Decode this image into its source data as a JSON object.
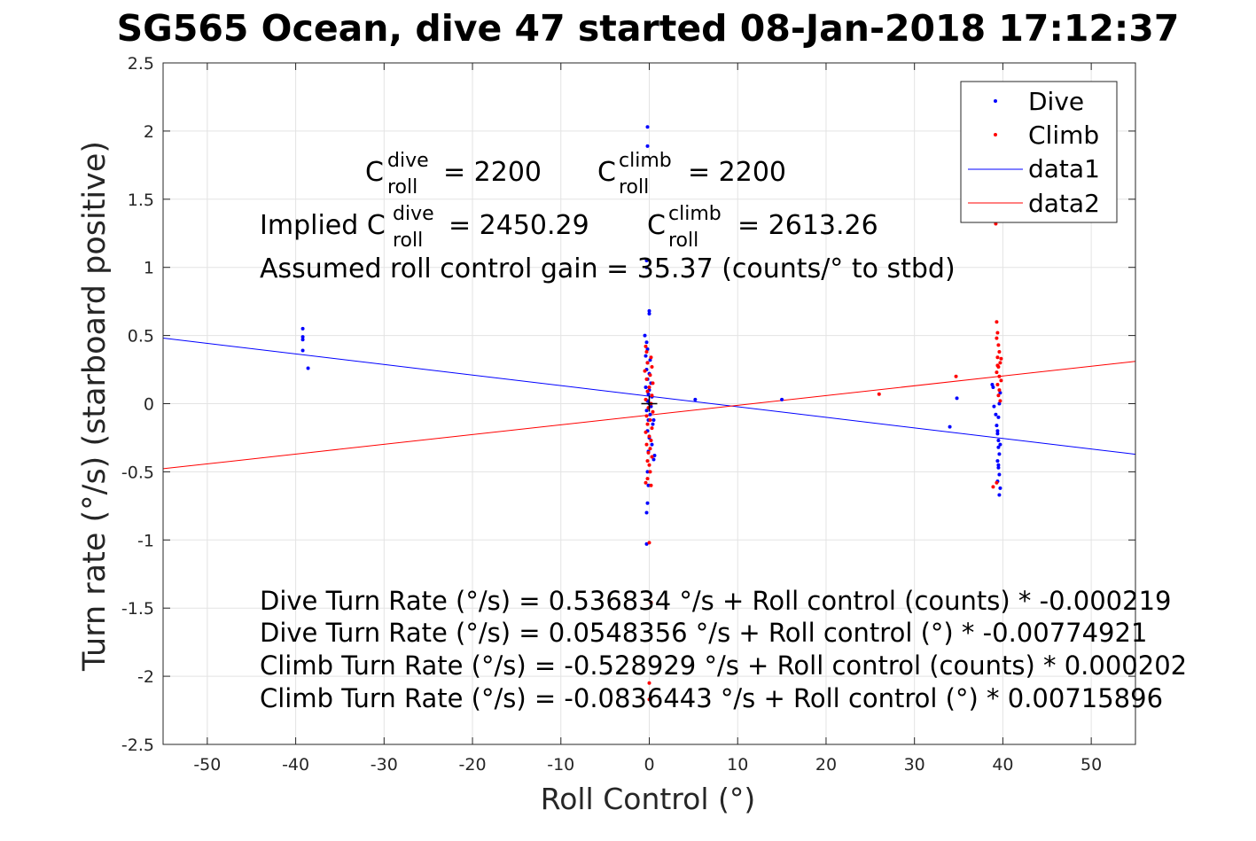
{
  "chart_data": {
    "type": "scatter",
    "title": "SG565 Ocean, dive 47 started 08-Jan-2018 17:12:37",
    "xlabel": "Roll Control (°)",
    "ylabel": "Turn rate (°/s) (starboard positive)",
    "xlim": [
      -55,
      55
    ],
    "ylim": [
      -2.5,
      2.5
    ],
    "xticks": [
      -50,
      -40,
      -30,
      -20,
      -10,
      0,
      10,
      20,
      30,
      40,
      50
    ],
    "yticks": [
      -2.5,
      -2,
      -1.5,
      -1,
      -0.5,
      0,
      0.5,
      1,
      1.5,
      2,
      2.5
    ],
    "xtick_labels": [
      "-50",
      "-40",
      "-30",
      "-20",
      "-10",
      "0",
      "10",
      "20",
      "30",
      "40",
      "50"
    ],
    "ytick_labels": [
      "-2.5",
      "-2",
      "-1.5",
      "-1",
      "-0.5",
      "0",
      "0.5",
      "1",
      "1.5",
      "2",
      "2.5"
    ],
    "grid": true,
    "legend_position": "top-right",
    "legend": [
      "Dive",
      "Climb",
      "data1",
      "data2"
    ],
    "series": [
      {
        "name": "Dive",
        "kind": "points",
        "color": "#0000ff",
        "points": [
          [
            -39.2,
            0.55
          ],
          [
            -39.2,
            0.49
          ],
          [
            -39.2,
            0.47
          ],
          [
            -39.2,
            0.39
          ],
          [
            -38.6,
            0.26
          ],
          [
            -0.5,
            0.5
          ],
          [
            -0.3,
            0.45
          ],
          [
            -0.2,
            0.4
          ],
          [
            -0.4,
            0.35
          ],
          [
            -0.2,
            0.3
          ],
          [
            0.1,
            0.32
          ],
          [
            -0.3,
            0.25
          ],
          [
            0.0,
            0.22
          ],
          [
            -0.2,
            0.18
          ],
          [
            0.2,
            0.15
          ],
          [
            -0.4,
            0.12
          ],
          [
            0.0,
            0.1
          ],
          [
            -0.1,
            0.07
          ],
          [
            0.3,
            0.05
          ],
          [
            -0.2,
            0.02
          ],
          [
            0.0,
            0.0
          ],
          [
            0.2,
            -0.02
          ],
          [
            -0.3,
            -0.05
          ],
          [
            0.1,
            -0.08
          ],
          [
            -0.1,
            -0.12
          ],
          [
            0.4,
            -0.15
          ],
          [
            -0.2,
            -0.2
          ],
          [
            0.0,
            -0.25
          ],
          [
            0.3,
            -0.3
          ],
          [
            -0.1,
            -0.35
          ],
          [
            0.6,
            -0.38
          ],
          [
            0.5,
            -0.41
          ],
          [
            0.5,
            -0.12
          ],
          [
            -0.2,
            -0.5
          ],
          [
            -0.1,
            -0.6
          ],
          [
            -0.2,
            -0.73
          ],
          [
            -0.3,
            -0.8
          ],
          [
            -0.3,
            -1.03
          ],
          [
            -0.2,
            2.03
          ],
          [
            -0.2,
            1.89
          ],
          [
            -0.3,
            1.05
          ],
          [
            -0.3,
            1.0
          ],
          [
            0.0,
            0.68
          ],
          [
            0.0,
            0.66
          ],
          [
            5.2,
            0.03
          ],
          [
            15.0,
            0.03
          ],
          [
            34.0,
            -0.17
          ],
          [
            34.8,
            0.04
          ],
          [
            38.8,
            0.14
          ],
          [
            38.9,
            0.12
          ],
          [
            39.0,
            -0.02
          ],
          [
            39.2,
            -0.08
          ],
          [
            39.3,
            -0.16
          ],
          [
            39.4,
            -0.22
          ],
          [
            39.5,
            -0.27
          ],
          [
            39.5,
            -0.32
          ],
          [
            39.6,
            -0.37
          ],
          [
            39.4,
            -0.42
          ],
          [
            39.5,
            -0.47
          ],
          [
            39.6,
            -0.52
          ],
          [
            39.4,
            -0.57
          ],
          [
            39.7,
            -0.62
          ],
          [
            39.6,
            -0.67
          ],
          [
            39.7,
            0.08
          ],
          [
            39.6,
            0.0
          ],
          [
            39.5,
            -0.1
          ],
          [
            39.4,
            -0.2
          ],
          [
            39.7,
            -0.3
          ],
          [
            39.5,
            -0.45
          ]
        ]
      },
      {
        "name": "Climb",
        "kind": "points",
        "color": "#ff0000",
        "points": [
          [
            -0.4,
            0.42
          ],
          [
            -0.3,
            0.38
          ],
          [
            0.2,
            0.34
          ],
          [
            -0.2,
            0.3
          ],
          [
            0.3,
            0.27
          ],
          [
            -0.5,
            0.24
          ],
          [
            0.1,
            0.21
          ],
          [
            -0.3,
            0.18
          ],
          [
            0.4,
            0.15
          ],
          [
            0.0,
            0.12
          ],
          [
            -0.2,
            0.09
          ],
          [
            0.3,
            0.06
          ],
          [
            -0.4,
            0.03
          ],
          [
            0.2,
            0.0
          ],
          [
            -0.1,
            -0.03
          ],
          [
            0.4,
            -0.06
          ],
          [
            -0.3,
            -0.09
          ],
          [
            0.1,
            -0.12
          ],
          [
            -0.2,
            -0.15
          ],
          [
            0.3,
            -0.18
          ],
          [
            -0.4,
            -0.21
          ],
          [
            0.0,
            -0.24
          ],
          [
            0.2,
            -0.27
          ],
          [
            -0.3,
            -0.3
          ],
          [
            0.1,
            -0.33
          ],
          [
            -0.1,
            -0.36
          ],
          [
            0.3,
            -0.39
          ],
          [
            -0.2,
            -0.42
          ],
          [
            0.0,
            -0.45
          ],
          [
            0.1,
            -0.5
          ],
          [
            -0.2,
            -0.55
          ],
          [
            0.2,
            -0.6
          ],
          [
            -0.4,
            -0.58
          ],
          [
            0.0,
            -1.02
          ],
          [
            0.2,
            -1.46
          ],
          [
            0.0,
            -2.17
          ],
          [
            0.0,
            -2.05
          ],
          [
            26.0,
            0.07
          ],
          [
            34.7,
            0.2
          ],
          [
            38.9,
            -0.61
          ],
          [
            39.3,
            -0.58
          ],
          [
            39.3,
            0.6
          ],
          [
            39.4,
            0.52
          ],
          [
            39.3,
            0.48
          ],
          [
            39.5,
            0.43
          ],
          [
            39.6,
            0.38
          ],
          [
            39.4,
            0.34
          ],
          [
            39.7,
            0.3
          ],
          [
            39.5,
            0.27
          ],
          [
            39.3,
            0.23
          ],
          [
            39.6,
            0.2
          ],
          [
            39.8,
            0.17
          ],
          [
            39.4,
            0.14
          ],
          [
            39.6,
            0.1
          ],
          [
            39.5,
            0.06
          ],
          [
            39.7,
            0.02
          ],
          [
            39.4,
            0.28
          ],
          [
            39.8,
            0.33
          ],
          [
            39.2,
            1.32
          ]
        ]
      },
      {
        "name": "data1",
        "kind": "line",
        "color": "#0000ff",
        "x": [
          -55,
          55
        ],
        "y": [
          0.481091,
          -0.371412
        ]
      },
      {
        "name": "data2",
        "kind": "line",
        "color": "#ff0000",
        "x": [
          -55,
          55
        ],
        "y": [
          -0.477387,
          0.310099
        ]
      }
    ],
    "annotations": {
      "c_dive_label": "C",
      "c_dive_sup": "dive",
      "c_dive_sub": "roll",
      "c_dive_value": "= 2200",
      "c_climb_label": "C",
      "c_climb_sup": "climb",
      "c_climb_sub": "roll",
      "c_climb_value": "= 2200",
      "implied_prefix": "Implied C",
      "implied_dive_sup": "dive",
      "implied_dive_sub": "roll",
      "implied_dive_value": "= 2450.29",
      "implied_climb_label": "C",
      "implied_climb_sup": "climb",
      "implied_climb_sub": "roll",
      "implied_climb_value": "= 2613.26",
      "gain_line": "Assumed roll control gain = 35.37 (counts/° to stbd)",
      "fit_lines": [
        "Dive Turn Rate (°/s) = 0.536834 °/s + Roll control (counts) * -0.000219",
        "Dive Turn Rate (°/s) = 0.0548356 °/s + Roll control (°) * -0.00774921",
        "Climb Turn Rate (°/s) = -0.528929 °/s + Roll control (counts) * 0.000202",
        "Climb Turn Rate (°/s) = -0.0836443 °/s + Roll control (°) * 0.00715896"
      ]
    }
  }
}
